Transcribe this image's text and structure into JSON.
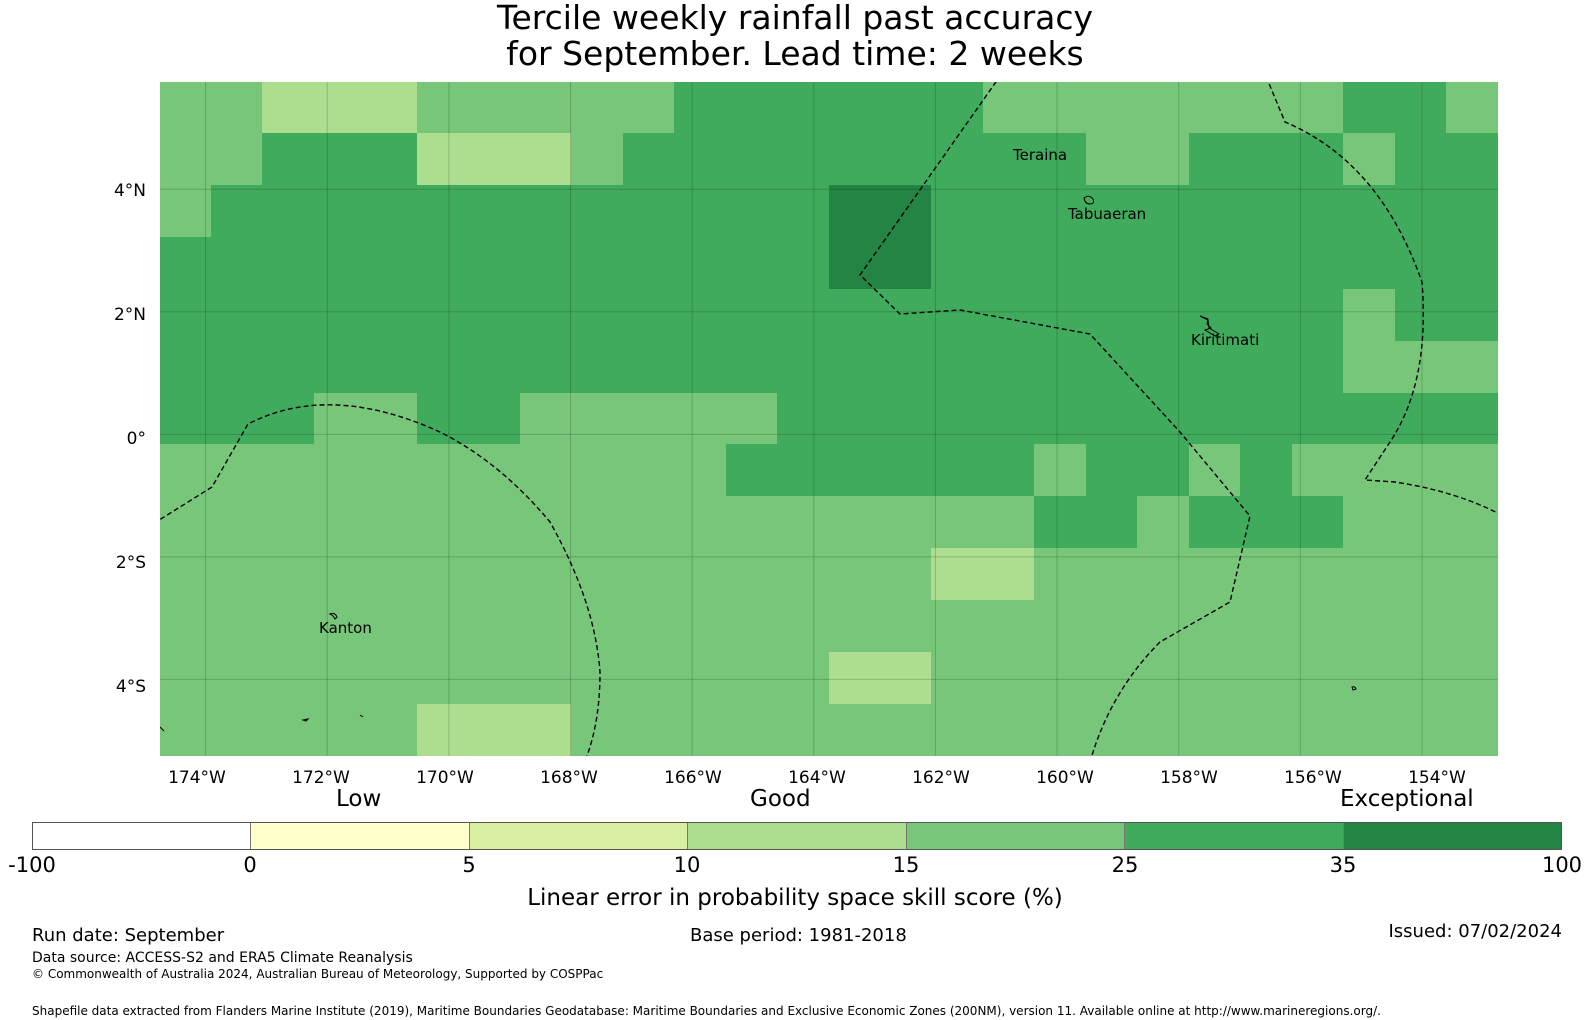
{
  "title": {
    "line1": "Tercile weekly rainfall past accuracy",
    "line2": "for September. Lead time: 2 weeks"
  },
  "map": {
    "lon_range": [
      -174.75,
      -152.75
    ],
    "lat_range": [
      -5.25,
      5.75
    ],
    "lon_ticks": [
      "174°W",
      "172°W",
      "170°W",
      "168°W",
      "166°W",
      "164°W",
      "162°W",
      "160°W",
      "158°W",
      "156°W",
      "154°W"
    ],
    "lon_values": [
      -174,
      -172,
      -170,
      -168,
      -166,
      -164,
      -162,
      -160,
      -158,
      -156,
      -154
    ],
    "lat_ticks": [
      "4°N",
      "2°N",
      "0°",
      "2°S",
      "4°S"
    ],
    "lat_values": [
      4,
      2,
      0,
      -2,
      -4
    ],
    "places": {
      "teraina": "Teraina",
      "tabuaeran": "Tabuaeran",
      "kiritimati": "Kiritimati",
      "kanton": "Kanton"
    },
    "grid_cols": 26,
    "grid_rows": 13,
    "grid_code_key": "0:<0  1:0-5  2:5-10  3:10-15  4:15-25  5:25-35  6:35-100",
    "skill_grid": [
      "44333444445555554444444554",
      "44555333455555555544555455",
      "45555555555556655555555555",
      "55555555555556655555555555",
      "55555555555555555555555455",
      "55555555555555555555555444",
      "55544554444455555555555555",
      "44444444444555555455454444",
      "44444444444444444554555444",
      "44444444444444433444444444",
      "44444444444444444444444444",
      "44444444444443344444444444",
      "44444333444444444444444444"
    ]
  },
  "colorbar": {
    "category_labels": [
      "Low",
      "Good",
      "Exceptional"
    ],
    "tick_labels": [
      "-100",
      "0",
      "5",
      "10",
      "15",
      "25",
      "35",
      "100"
    ],
    "colors": [
      "#ffffff",
      "#ffffcc",
      "#d9f0a3",
      "#addd8e",
      "#78c679",
      "#41ab5d",
      "#238443"
    ],
    "label": "Linear error in probability space skill score (%)"
  },
  "footer": {
    "run_date": "Run date: September",
    "base_period": "Base period: 1981-2018",
    "issued": "Issued: 07/02/2024",
    "data_source": "Data source: ACCESS-S2 and ERA5 Climate Reanalysis",
    "copyright": "© Commonwealth of Australia 2024, Australian Bureau of Meteorology, Supported by COSPPac",
    "shapefile": "Shapefile data extracted from Flanders Marine Institute (2019), Maritime Boundaries Geodatabase: Maritime Boundaries and Exclusive Economic Zones (200NM), version 11. Available online at http://www.marineregions.org/."
  }
}
